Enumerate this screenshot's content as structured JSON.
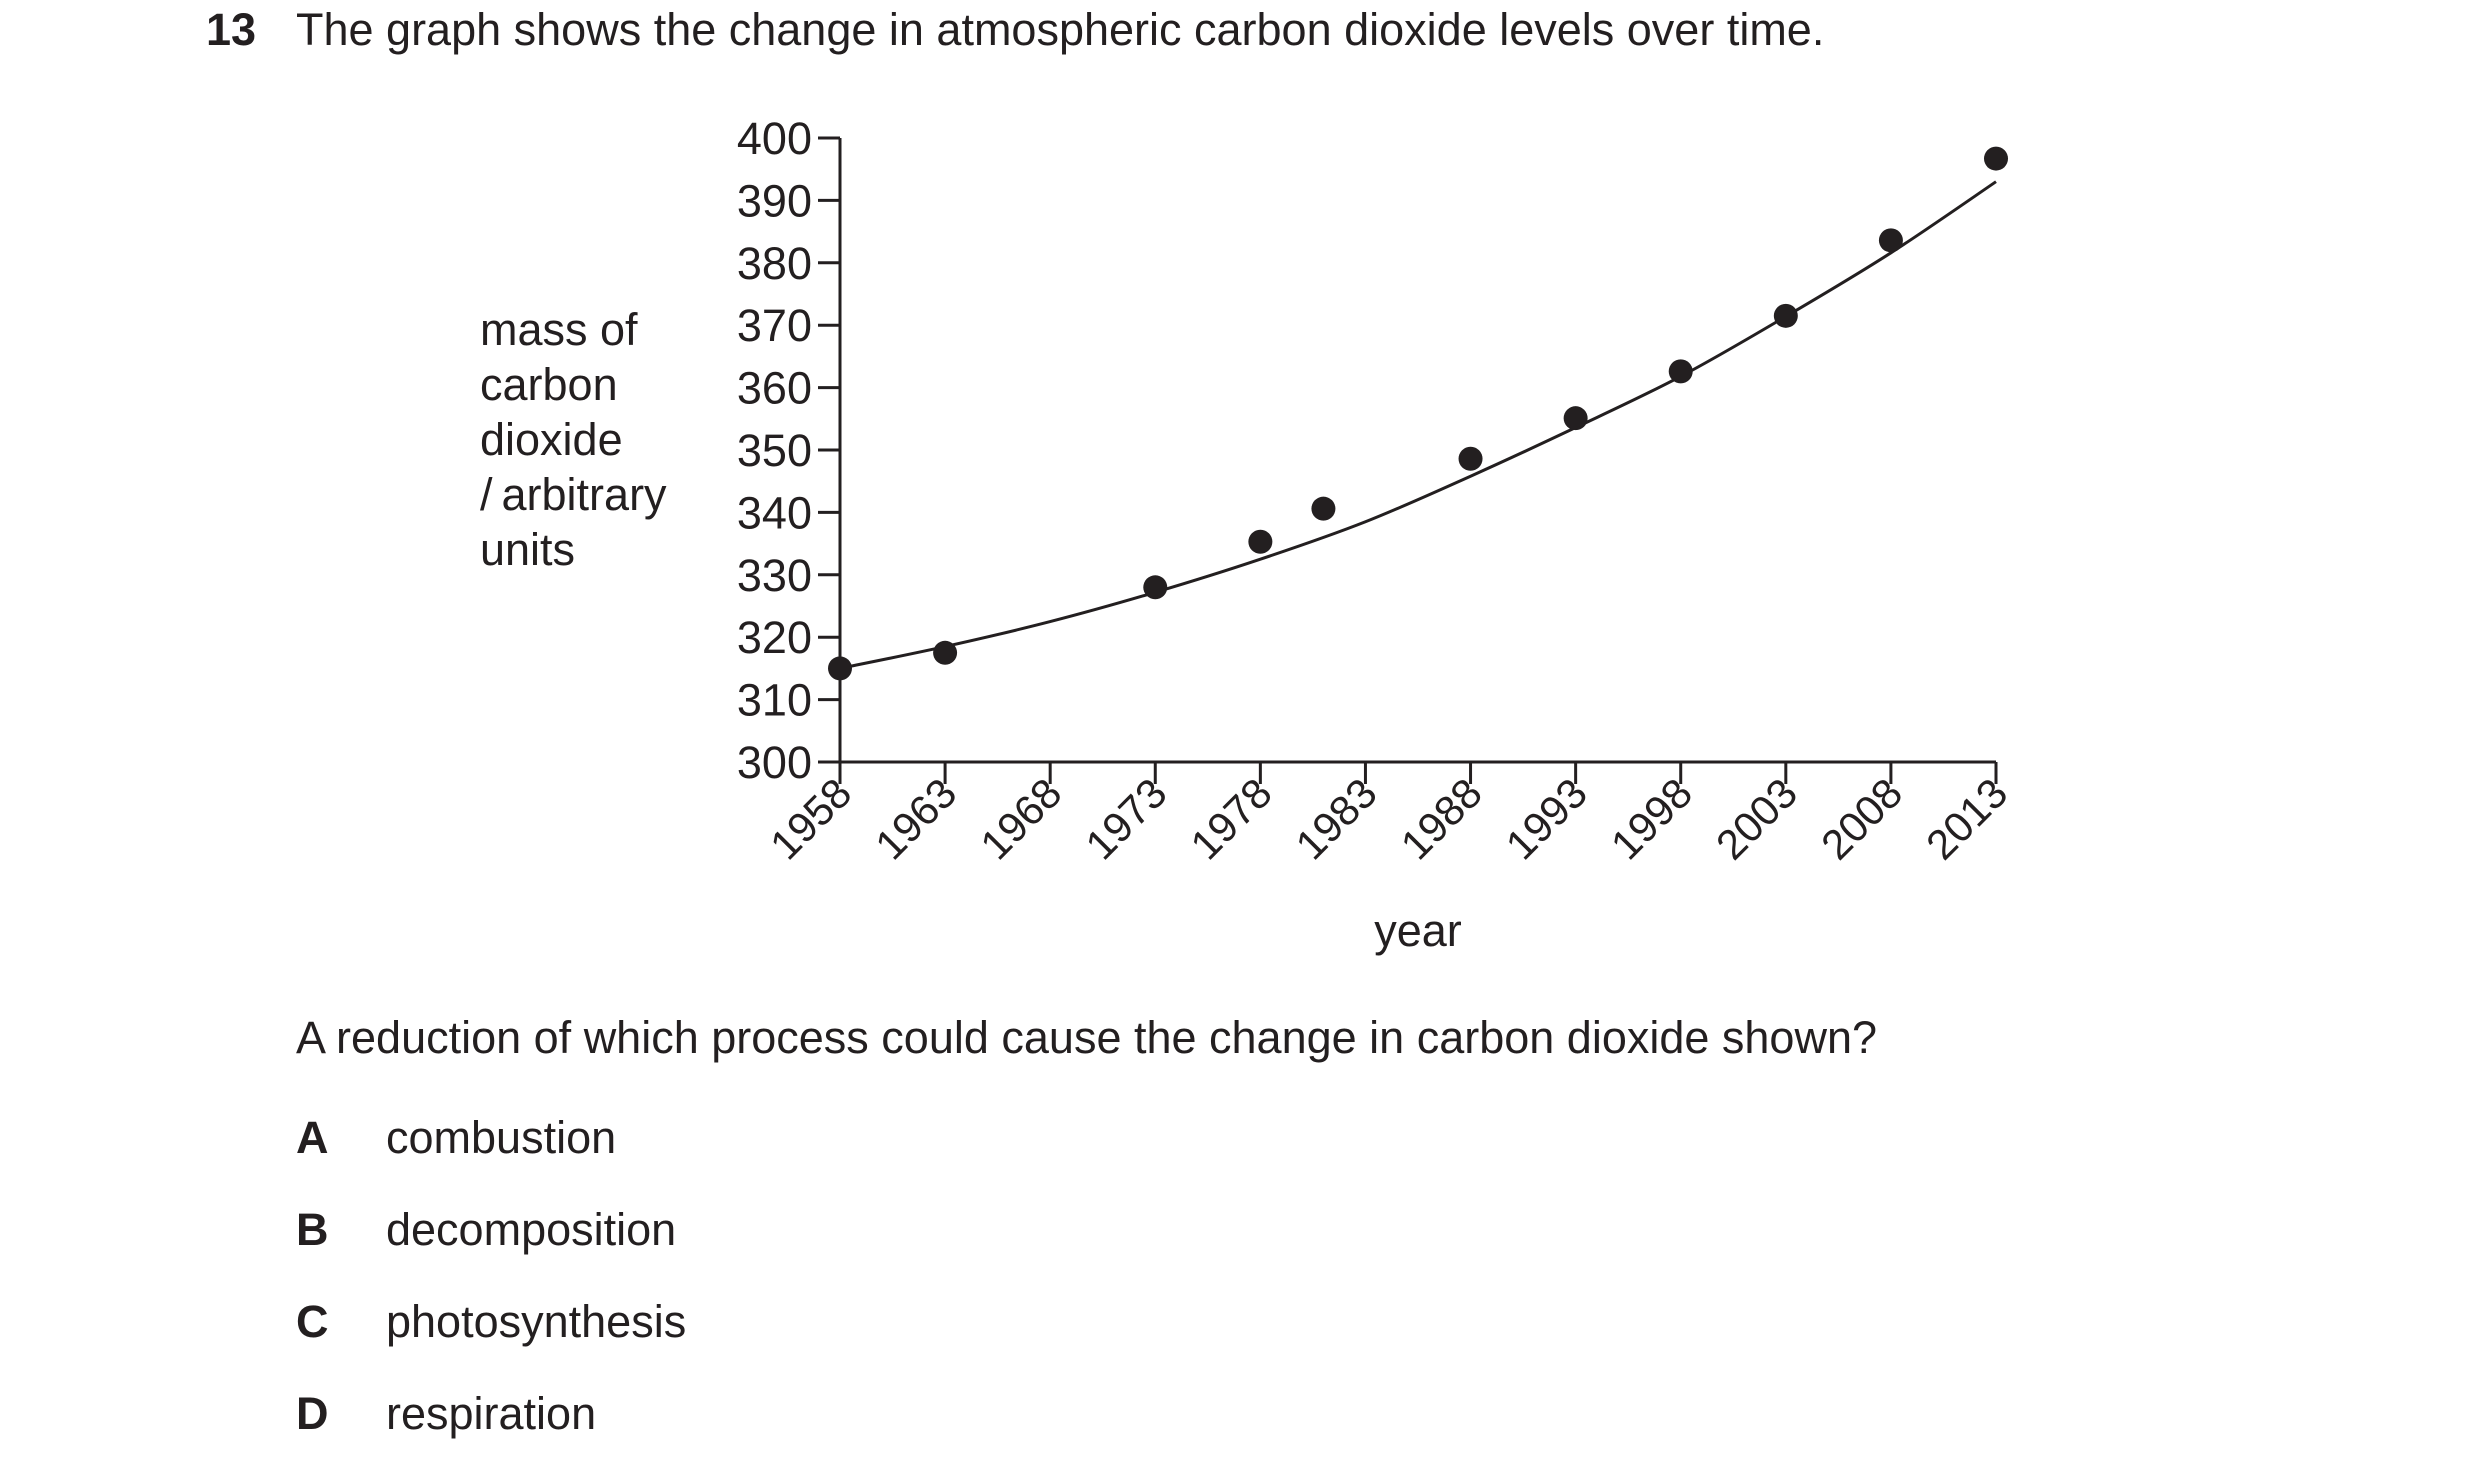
{
  "question": {
    "number": "13",
    "stem": "The graph shows the change in atmospheric carbon dioxide levels over time.",
    "prompt": "A reduction of which process could cause the change in carbon dioxide shown?",
    "options": [
      {
        "letter": "A",
        "text": "combustion"
      },
      {
        "letter": "B",
        "text": "decomposition"
      },
      {
        "letter": "C",
        "text": "photosynthesis"
      },
      {
        "letter": "D",
        "text": "respiration"
      }
    ]
  },
  "chart_data": {
    "type": "scatter",
    "title": "",
    "xlabel": "year",
    "ylabel_lines": [
      "mass of",
      "carbon",
      "dioxide",
      "/ arbitrary",
      "units"
    ],
    "xlim": [
      1958,
      2013
    ],
    "ylim": [
      300,
      400
    ],
    "x_ticks": [
      1958,
      1963,
      1968,
      1973,
      1978,
      1983,
      1988,
      1993,
      1998,
      2003,
      2008,
      2013
    ],
    "y_ticks": [
      300,
      310,
      320,
      330,
      340,
      350,
      360,
      370,
      380,
      390,
      400
    ],
    "points": [
      {
        "x": 1958,
        "y": 315
      },
      {
        "x": 1963,
        "y": 317.5
      },
      {
        "x": 1973,
        "y": 328
      },
      {
        "x": 1978,
        "y": 335.3
      },
      {
        "x": 1981,
        "y": 340.6
      },
      {
        "x": 1988,
        "y": 348.6
      },
      {
        "x": 1993,
        "y": 355.1
      },
      {
        "x": 1998,
        "y": 362.6
      },
      {
        "x": 2003,
        "y": 371.5
      },
      {
        "x": 2008,
        "y": 383.6
      },
      {
        "x": 2013,
        "y": 396.7
      }
    ],
    "curve": [
      {
        "x": 1958,
        "y": 315
      },
      {
        "x": 1963,
        "y": 318.5
      },
      {
        "x": 1968,
        "y": 322.5
      },
      {
        "x": 1973,
        "y": 327.2
      },
      {
        "x": 1978,
        "y": 332.5
      },
      {
        "x": 1983,
        "y": 338.5
      },
      {
        "x": 1988,
        "y": 345.8
      },
      {
        "x": 1993,
        "y": 353.6
      },
      {
        "x": 1998,
        "y": 361.8
      },
      {
        "x": 2003,
        "y": 371.4
      },
      {
        "x": 2008,
        "y": 381.6
      },
      {
        "x": 2013,
        "y": 393
      }
    ],
    "grid": false,
    "legend": "none"
  }
}
